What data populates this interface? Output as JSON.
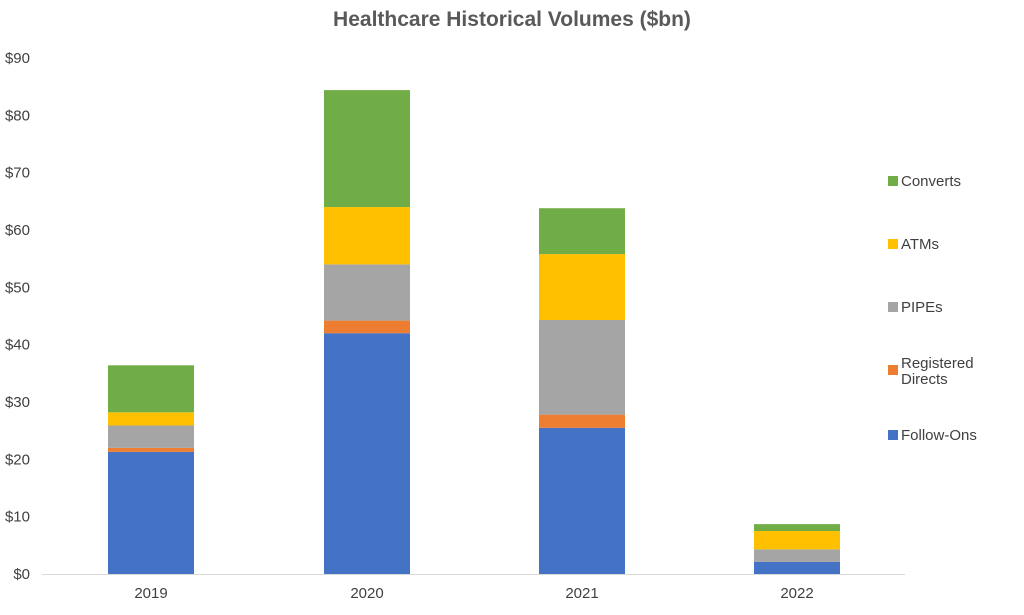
{
  "chart_data": {
    "type": "bar",
    "stacked": true,
    "title": "Healthcare Historical Volumes ($bn)",
    "xlabel": "",
    "ylabel": "",
    "categories": [
      "2019",
      "2020",
      "2021",
      "2022"
    ],
    "ylim": [
      0,
      90
    ],
    "y_ticks": [
      0,
      10,
      20,
      30,
      40,
      50,
      60,
      70,
      80,
      90
    ],
    "y_tick_labels": [
      "$0",
      "$10",
      "$20",
      "$30",
      "$40",
      "$50",
      "$60",
      "$70",
      "$80",
      "$90"
    ],
    "grid": false,
    "legend_position": "right",
    "series": [
      {
        "name": "Follow-Ons",
        "color": "#4472C4",
        "values": [
          21.3,
          42.0,
          25.5,
          2.1
        ]
      },
      {
        "name": "Registered Directs",
        "color": "#ED7D31",
        "values": [
          0.7,
          2.2,
          2.3,
          0.0
        ]
      },
      {
        "name": "PIPEs",
        "color": "#A5A5A5",
        "values": [
          3.9,
          9.8,
          16.5,
          2.2
        ]
      },
      {
        "name": "ATMs",
        "color": "#FFC000",
        "values": [
          2.3,
          10.0,
          11.5,
          3.2
        ]
      },
      {
        "name": "Converts",
        "color": "#70AD47",
        "values": [
          8.2,
          20.4,
          8.0,
          1.2
        ]
      }
    ]
  }
}
